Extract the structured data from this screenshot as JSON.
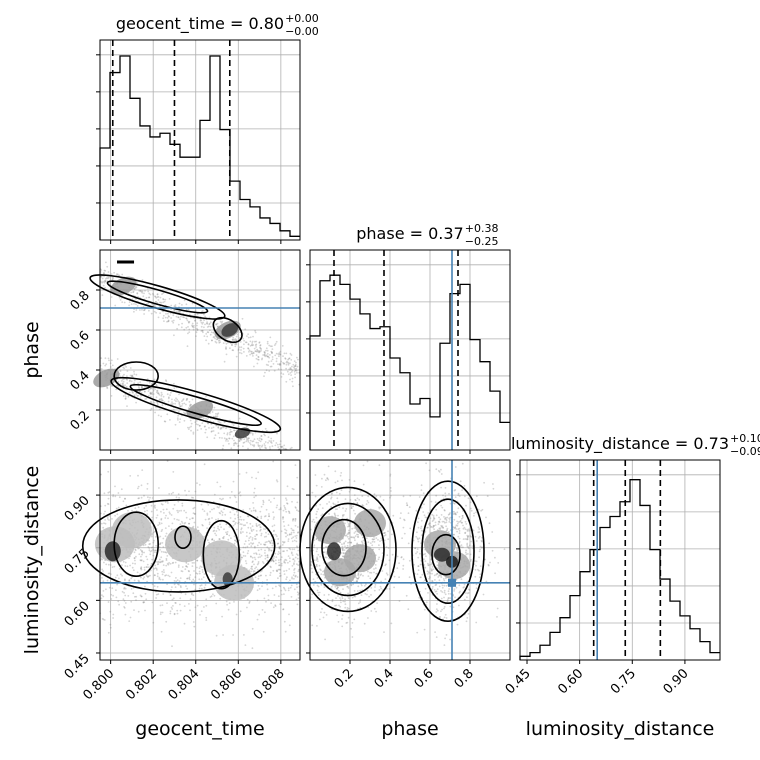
{
  "chart_data": {
    "type": "corner",
    "parameters": [
      "geocent_time",
      "phase",
      "luminosity_distance"
    ],
    "titles": [
      {
        "param": "geocent_time",
        "text": "geocent_time = 0.80",
        "plus": "+0.00",
        "minus": "−0.00"
      },
      {
        "param": "phase",
        "text": "phase = 0.37",
        "plus": "+0.38",
        "minus": "−0.25"
      },
      {
        "param": "luminosity_distance",
        "text": "luminosity_distance = 0.73",
        "plus": "+0.10",
        "minus": "−0.09"
      }
    ],
    "ranges": {
      "geocent_time": [
        0.7995,
        0.8089
      ],
      "phase": [
        0.0,
        1.0
      ],
      "luminosity_distance": [
        0.43,
        1.0
      ]
    },
    "tick_labels": {
      "geocent_time": [
        "0.800",
        "0.802",
        "0.804",
        "0.806",
        "0.808"
      ],
      "phase": [
        "0.2",
        "0.4",
        "0.6",
        "0.8"
      ],
      "luminosity_distance": [
        "0.45",
        "0.60",
        "0.75",
        "0.90"
      ]
    },
    "truths": {
      "geocent_time": null,
      "phase": 0.71,
      "luminosity_distance": 0.65
    },
    "quantiles": {
      "geocent_time": [
        0.8001,
        0.803,
        0.8056
      ],
      "phase": [
        0.12,
        0.37,
        0.74
      ],
      "luminosity_distance": [
        0.64,
        0.73,
        0.83
      ]
    },
    "histograms": {
      "geocent_time": {
        "edges_start": 0.7995,
        "bin_width": 0.00047,
        "counts": [
          0.5,
          0.91,
          1.0,
          0.77,
          0.62,
          0.56,
          0.58,
          0.52,
          0.45,
          0.45,
          0.65,
          1.0,
          0.6,
          0.32,
          0.22,
          0.18,
          0.12,
          0.09,
          0.05,
          0.02
        ]
      },
      "phase": {
        "edges_start": 0.0,
        "bin_width": 0.05,
        "counts": [
          0.62,
          0.92,
          0.95,
          0.9,
          0.82,
          0.74,
          0.66,
          0.67,
          0.5,
          0.42,
          0.25,
          0.28,
          0.18,
          0.58,
          0.85,
          0.9,
          0.6,
          0.48,
          0.32,
          0.15
        ]
      },
      "luminosity_distance": {
        "edges_start": 0.43,
        "bin_width": 0.0285,
        "counts": [
          0.02,
          0.04,
          0.08,
          0.15,
          0.23,
          0.35,
          0.48,
          0.6,
          0.72,
          0.78,
          0.86,
          0.98,
          0.84,
          0.6,
          0.44,
          0.32,
          0.24,
          0.17,
          0.1,
          0.04
        ]
      }
    }
  }
}
